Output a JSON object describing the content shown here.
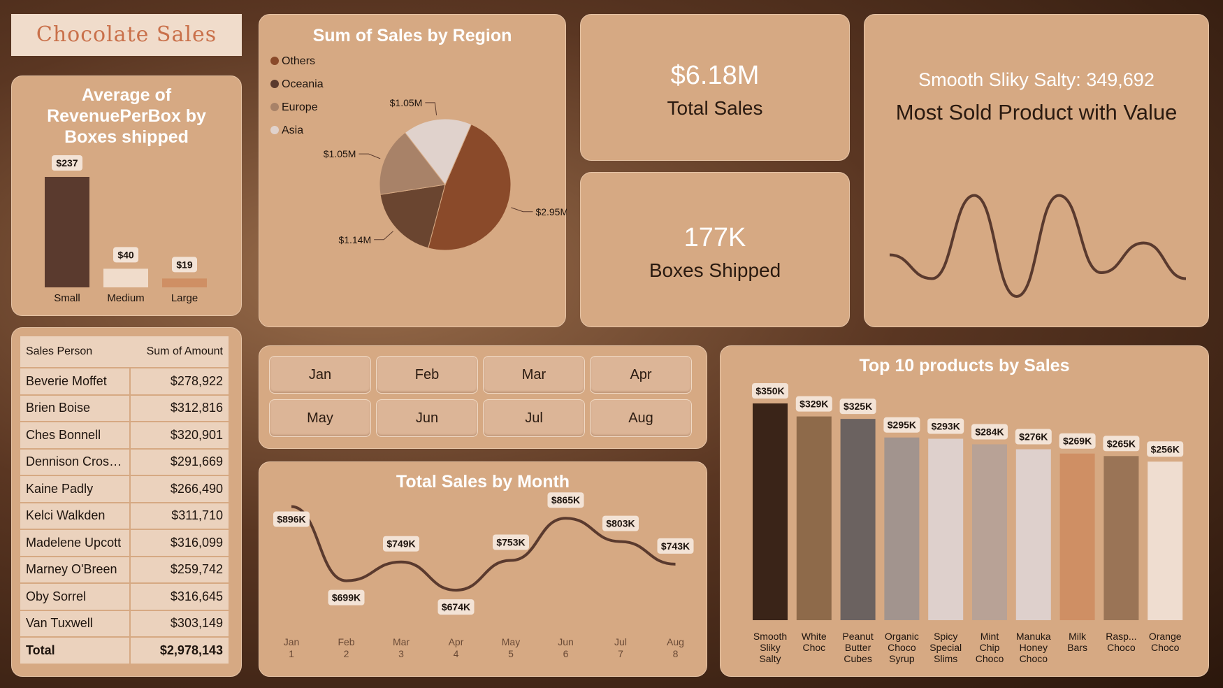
{
  "dashboard_title": "Chocolate Sales",
  "kpis": {
    "total_sales_value": "$6.18M",
    "total_sales_label": "Total Sales",
    "boxes_value": "177K",
    "boxes_label": "Boxes Shipped",
    "most_sold_value": "Smooth Sliky Salty: 349,692",
    "most_sold_label": "Most Sold Product with Value"
  },
  "months": [
    "Jan",
    "Feb",
    "Mar",
    "Apr",
    "May",
    "Jun",
    "Jul",
    "Aug"
  ],
  "colors": {
    "panel": "#d6a983",
    "dark_bar": "#5a3a2e",
    "line": "#5a3a2e"
  },
  "table": {
    "headers": [
      "Sales Person",
      "Sum of Amount"
    ],
    "rows": [
      [
        "Beverie Moffet",
        "$278,922"
      ],
      [
        "Brien Boise",
        "$312,816"
      ],
      [
        "Ches Bonnell",
        "$320,901"
      ],
      [
        "Dennison Cross...",
        "$291,669"
      ],
      [
        "Kaine Padly",
        "$266,490"
      ],
      [
        "Kelci Walkden",
        "$311,710"
      ],
      [
        "Madelene Upcott",
        "$316,099"
      ],
      [
        "Marney O'Breen",
        "$259,742"
      ],
      [
        "Oby Sorrel",
        "$316,645"
      ],
      [
        "Van Tuxwell",
        "$303,149"
      ]
    ],
    "total_label": "Total",
    "total_value": "$2,978,143"
  },
  "chart_data": [
    {
      "type": "bar",
      "title": "Average of RevenuePerBox by Boxes shipped",
      "categories": [
        "Small",
        "Medium",
        "Large"
      ],
      "values": [
        237,
        40,
        19
      ],
      "labels": [
        "$237",
        "$40",
        "$19"
      ],
      "colors": [
        "#5a3a2e",
        "#f0dccb",
        "#cf8f64"
      ],
      "ylim": [
        0,
        237
      ]
    },
    {
      "type": "pie",
      "title": "Sum of Sales by Region",
      "legend": [
        "Others",
        "Oceania",
        "Europe",
        "Asia"
      ],
      "legend_colors": [
        "#8a4a2a",
        "#5a3a2e",
        "#a88268",
        "#e0d2cc"
      ],
      "slices": [
        {
          "name": "Others",
          "value": 2.95,
          "label": "$2.95M",
          "color": "#8a4a2a"
        },
        {
          "name": "Oceania",
          "value": 1.14,
          "label": "$1.14M",
          "color": "#6a4530"
        },
        {
          "name": "Europe",
          "value": 1.05,
          "label": "$1.05M",
          "color": "#a88268"
        },
        {
          "name": "Asia",
          "value": 1.05,
          "label": "$1.05M",
          "color": "#e0d2cc"
        }
      ]
    },
    {
      "type": "line",
      "title": "Total Sales by Month",
      "categories": [
        "Jan",
        "Feb",
        "Mar",
        "Apr",
        "May",
        "Jun",
        "Jul",
        "Aug"
      ],
      "x_numbers": [
        "1",
        "2",
        "3",
        "4",
        "5",
        "6",
        "7",
        "8"
      ],
      "values": [
        896,
        699,
        749,
        674,
        753,
        865,
        803,
        743
      ],
      "labels": [
        "$896K",
        "$699K",
        "$749K",
        "$674K",
        "$753K",
        "$865K",
        "$803K",
        "$743K"
      ]
    },
    {
      "type": "bar",
      "title": "Top 10 products by Sales",
      "categories": [
        [
          "Smooth",
          "Sliky",
          "Salty"
        ],
        [
          "White",
          "Choc"
        ],
        [
          "Peanut",
          "Butter",
          "Cubes"
        ],
        [
          "Organic",
          "Choco",
          "Syrup"
        ],
        [
          "Spicy",
          "Special",
          "Slims"
        ],
        [
          "Mint",
          "Chip",
          "Choco"
        ],
        [
          "Manuka",
          "Honey",
          "Choco"
        ],
        [
          "Milk",
          "Bars"
        ],
        [
          "Rasp...",
          "Choco"
        ],
        [
          "Orange",
          "Choco"
        ]
      ],
      "values": [
        350,
        329,
        325,
        295,
        293,
        284,
        276,
        269,
        265,
        256
      ],
      "labels": [
        "$350K",
        "$329K",
        "$325K",
        "$295K",
        "$293K",
        "$284K",
        "$276K",
        "$269K",
        "$265K",
        "$256K"
      ],
      "colors": [
        "#3a2418",
        "#8e6a4a",
        "#6b6260",
        "#a2948e",
        "#ded0cc",
        "#b8a296",
        "#ded0cc",
        "#cf8f64",
        "#9a7456",
        "#efddd0"
      ]
    },
    {
      "type": "line",
      "title": "",
      "values": [
        0.45,
        0.25,
        0.95,
        0.1,
        0.95,
        0.3,
        0.55,
        0.25
      ]
    }
  ]
}
